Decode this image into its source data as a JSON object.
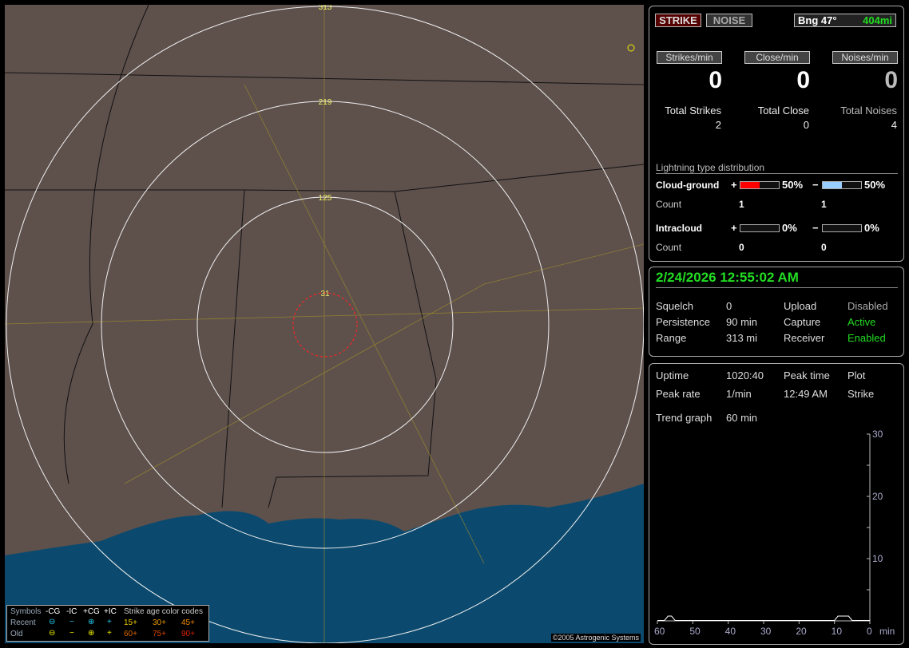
{
  "map": {
    "ring_labels": [
      "313",
      "219",
      "125",
      "31"
    ],
    "copyright": "©2005 Astrogenic Systems"
  },
  "legend": {
    "symbols_label": "Symbols",
    "cols": [
      "-CG",
      "-IC",
      "+CG",
      "+IC"
    ],
    "age_label": "Strike age color codes",
    "rows": [
      {
        "label": "Recent",
        "symbols": [
          "⊖",
          "−",
          "⊕",
          "+"
        ],
        "color": "#22ccee",
        "ages": [
          "15+",
          "30+",
          "45+"
        ],
        "age_colors": [
          "#eecc00",
          "#ee9900",
          "#ee8800"
        ]
      },
      {
        "label": "Old",
        "symbols": [
          "⊖",
          "−",
          "⊕",
          "+"
        ],
        "color": "#eeee00",
        "ages": [
          "60+",
          "75+",
          "90+"
        ],
        "age_colors": [
          "#dd6600",
          "#dd4400",
          "#dd2200"
        ]
      }
    ]
  },
  "top": {
    "strike_btn": "STRIKE",
    "noise_btn": "NOISE",
    "bearing": "Bng 47°",
    "distance": "404mi"
  },
  "rates": [
    {
      "label": "Strikes/min",
      "value": "0",
      "total_label": "Total Strikes",
      "total": "2"
    },
    {
      "label": "Close/min",
      "value": "0",
      "total_label": "Total Close",
      "total": "0"
    },
    {
      "label": "Noises/min",
      "value": "0",
      "total_label": "Total Noises",
      "total": "4"
    }
  ],
  "dist": {
    "title": "Lightning type distribution",
    "cg_label": "Cloud-ground",
    "ic_label": "Intracloud",
    "count_label": "Count",
    "plus": "+",
    "minus": "−",
    "cg_pos_pct": "50%",
    "cg_neg_pct": "50%",
    "ic_pos_pct": "0%",
    "ic_neg_pct": "0%",
    "cg_pos_count": "1",
    "cg_neg_count": "1",
    "ic_pos_count": "0",
    "ic_neg_count": "0",
    "cg_pos_fill": 50,
    "cg_neg_fill": 50,
    "ic_pos_fill": 0,
    "ic_neg_fill": 0,
    "pos_color": "#ff0000",
    "neg_color": "#99ccff"
  },
  "status": {
    "datetime": "2/24/2026 12:55:02 AM",
    "squelch_l": "Squelch",
    "squelch": "0",
    "persist_l": "Persistence",
    "persist": "90 min",
    "range_l": "Range",
    "range": "313 mi",
    "upload_l": "Upload",
    "upload": "Disabled",
    "capture_l": "Capture",
    "capture": "Active",
    "receiver_l": "Receiver",
    "receiver": "Enabled"
  },
  "stats": {
    "uptime_l": "Uptime",
    "uptime": "1020:40",
    "peaktime_l": "Peak time",
    "plot_l": "Plot",
    "peakrate_l": "Peak rate",
    "peakrate": "1/min",
    "peaktime": "12:49 AM",
    "plot": "Strike",
    "trend_l": "Trend graph",
    "trend": "60 min"
  },
  "chart_data": {
    "type": "line",
    "x_ticks": [
      "60",
      "50",
      "40",
      "30",
      "20",
      "10",
      "0"
    ],
    "x_unit": "min",
    "y_ticks": [
      "10",
      "20",
      "30"
    ],
    "xlim": [
      60,
      0
    ],
    "ylim": [
      0,
      30
    ],
    "x": [
      57,
      56,
      9,
      8,
      7,
      6
    ],
    "y": [
      1,
      1,
      1,
      1,
      1,
      1
    ]
  }
}
